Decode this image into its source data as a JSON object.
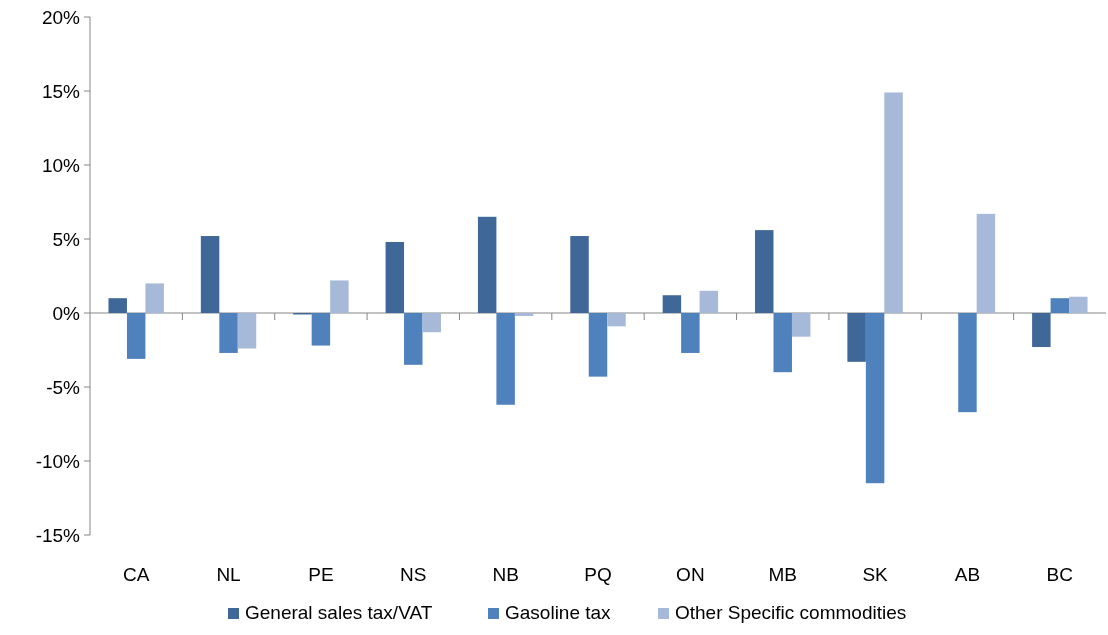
{
  "chart_data": {
    "type": "bar",
    "categories": [
      "CA",
      "NL",
      "PE",
      "NS",
      "NB",
      "PQ",
      "ON",
      "MB",
      "SK",
      "AB",
      "BC"
    ],
    "series": [
      {
        "name": "General sales tax/VAT",
        "color": "#3f6797",
        "values": [
          1.0,
          5.2,
          -0.1,
          4.8,
          6.5,
          5.2,
          1.2,
          5.6,
          -3.3,
          null,
          -2.3
        ]
      },
      {
        "name": "Gasoline tax",
        "color": "#4f81bd",
        "values": [
          -3.1,
          -2.7,
          -2.2,
          -3.5,
          -6.2,
          -4.3,
          -2.7,
          -4.0,
          -11.5,
          -6.7,
          1.0
        ]
      },
      {
        "name": "Other Specific commodities",
        "color": "#a7b9d8",
        "values": [
          2.0,
          -2.4,
          2.2,
          -1.3,
          -0.2,
          -0.9,
          1.5,
          -1.6,
          14.9,
          6.7,
          1.1
        ]
      }
    ],
    "ylim": [
      -15,
      20
    ],
    "yticks": [
      {
        "value": -15,
        "label": "-15%"
      },
      {
        "value": -10,
        "label": "-10%"
      },
      {
        "value": -5,
        "label": "-5%"
      },
      {
        "value": 0,
        "label": "0%"
      },
      {
        "value": 5,
        "label": "5%"
      },
      {
        "value": 10,
        "label": "10%"
      },
      {
        "value": 15,
        "label": "15%"
      },
      {
        "value": 20,
        "label": "20%"
      }
    ],
    "legend": "bottom"
  }
}
